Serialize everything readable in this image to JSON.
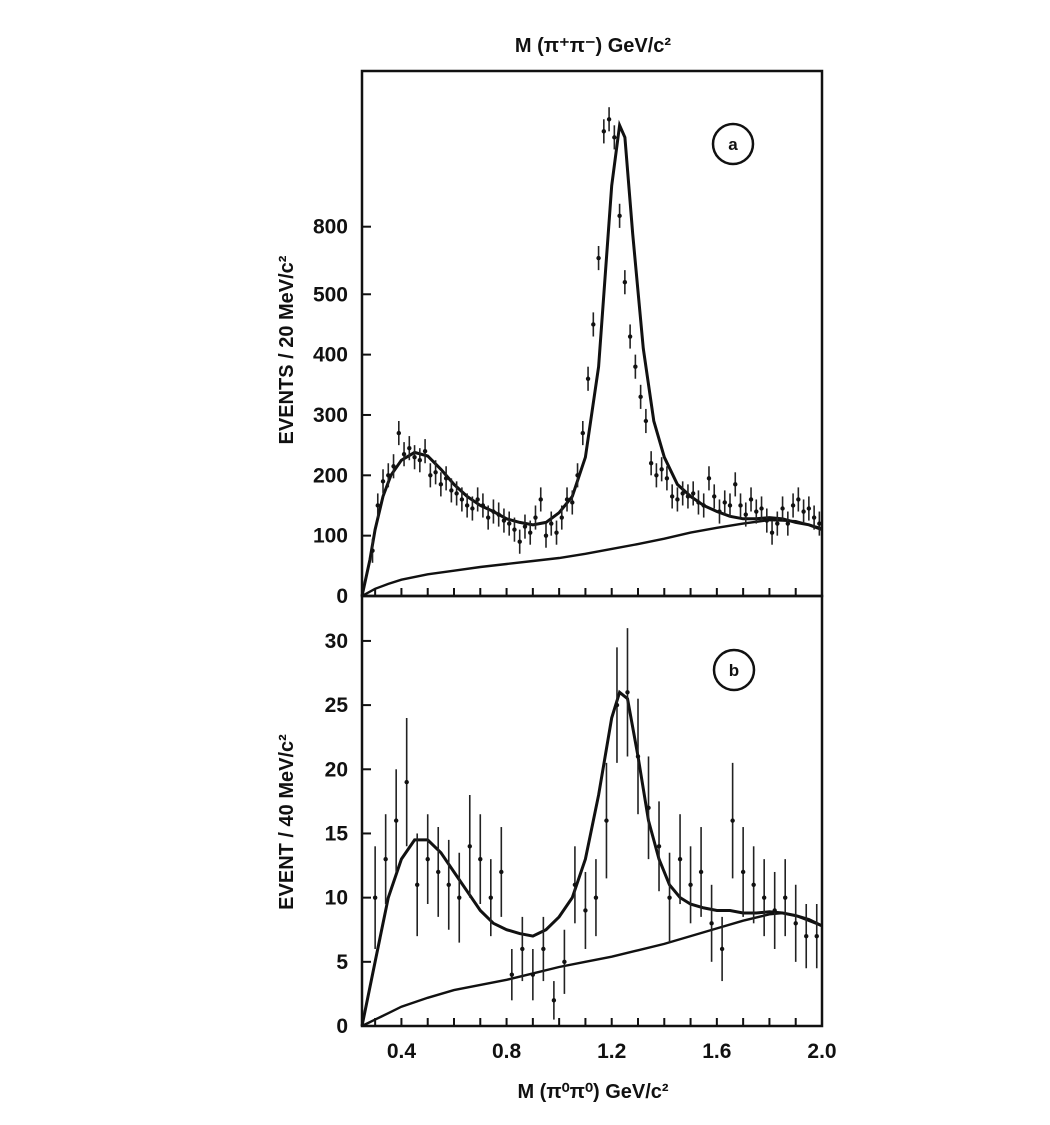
{
  "figure": {
    "top_axis_label": "M (π⁺π⁻) GeV/c²",
    "bottom_axis_label": "M (π⁰π⁰) GeV/c²"
  },
  "chart_data": [
    {
      "panel": "a",
      "type": "scatter",
      "ylabel": "EVENTS / 20 MeV/c²",
      "xlim": [
        0.25,
        2.0
      ],
      "ylim": [
        0,
        870
      ],
      "yticks": [
        0,
        100,
        200,
        300,
        400,
        500,
        800
      ],
      "ytick_labels": [
        "0",
        "100",
        "200",
        "300",
        "400",
        "500",
        "800"
      ],
      "yticks_note": "tick labels printed as shown in original",
      "points": {
        "x": [
          0.29,
          0.31,
          0.33,
          0.35,
          0.37,
          0.39,
          0.41,
          0.43,
          0.45,
          0.47,
          0.49,
          0.51,
          0.53,
          0.55,
          0.57,
          0.59,
          0.61,
          0.63,
          0.65,
          0.67,
          0.69,
          0.71,
          0.73,
          0.75,
          0.77,
          0.79,
          0.81,
          0.83,
          0.85,
          0.87,
          0.89,
          0.91,
          0.93,
          0.95,
          0.97,
          0.99,
          1.01,
          1.03,
          1.05,
          1.07,
          1.09,
          1.11,
          1.13,
          1.15,
          1.17,
          1.19,
          1.21,
          1.23,
          1.25,
          1.27,
          1.29,
          1.31,
          1.33,
          1.35,
          1.37,
          1.39,
          1.41,
          1.43,
          1.45,
          1.47,
          1.49,
          1.51,
          1.53,
          1.55,
          1.57,
          1.59,
          1.61,
          1.63,
          1.65,
          1.67,
          1.69,
          1.71,
          1.73,
          1.75,
          1.77,
          1.79,
          1.81,
          1.83,
          1.85,
          1.87,
          1.89,
          1.91,
          1.93,
          1.95,
          1.97,
          1.99
        ],
        "y": [
          75,
          150,
          190,
          200,
          215,
          270,
          235,
          245,
          230,
          225,
          240,
          200,
          205,
          185,
          195,
          175,
          170,
          160,
          150,
          145,
          160,
          150,
          130,
          140,
          135,
          125,
          120,
          110,
          90,
          115,
          105,
          130,
          160,
          100,
          120,
          105,
          130,
          160,
          155,
          200,
          270,
          360,
          450,
          560,
          770,
          790,
          760,
          630,
          520,
          430,
          380,
          330,
          290,
          220,
          200,
          210,
          195,
          165,
          160,
          170,
          165,
          170,
          155,
          150,
          195,
          165,
          140,
          155,
          150,
          185,
          150,
          135,
          160,
          140,
          145,
          125,
          105,
          120,
          145,
          120,
          150,
          160,
          140,
          145,
          130,
          120
        ],
        "yerr": 20
      },
      "fit_total": {
        "x": [
          0.25,
          0.28,
          0.3,
          0.33,
          0.36,
          0.4,
          0.45,
          0.5,
          0.55,
          0.6,
          0.65,
          0.7,
          0.75,
          0.8,
          0.85,
          0.9,
          0.95,
          1.0,
          1.05,
          1.1,
          1.15,
          1.2,
          1.23,
          1.25,
          1.28,
          1.32,
          1.36,
          1.4,
          1.45,
          1.5,
          1.55,
          1.6,
          1.65,
          1.7,
          1.75,
          1.8,
          1.85,
          1.9,
          1.95,
          2.0
        ],
        "y": [
          0,
          60,
          110,
          165,
          200,
          225,
          238,
          232,
          210,
          185,
          165,
          150,
          140,
          128,
          122,
          118,
          122,
          138,
          165,
          230,
          380,
          680,
          780,
          760,
          600,
          410,
          290,
          230,
          185,
          165,
          150,
          140,
          132,
          128,
          128,
          130,
          128,
          122,
          118,
          110
        ]
      },
      "fit_background": {
        "x": [
          0.25,
          0.3,
          0.35,
          0.4,
          0.5,
          0.6,
          0.7,
          0.8,
          0.9,
          1.0,
          1.1,
          1.2,
          1.3,
          1.4,
          1.5,
          1.6,
          1.7,
          1.8,
          1.85,
          1.9,
          2.0
        ],
        "y": [
          0,
          12,
          20,
          27,
          36,
          42,
          48,
          53,
          58,
          63,
          70,
          78,
          86,
          95,
          105,
          113,
          120,
          126,
          125,
          124,
          112
        ]
      }
    },
    {
      "panel": "b",
      "type": "scatter",
      "ylabel": "EVENT / 40 MeV/c²",
      "xlabel": "M (π⁰π⁰) GeV/c²",
      "xlim": [
        0.25,
        2.0
      ],
      "ylim": [
        0,
        33.5
      ],
      "xticks": [
        0.4,
        0.8,
        1.2,
        1.6,
        2.0
      ],
      "xtick_labels": [
        "0.4",
        "0.8",
        "1.2",
        "1.6",
        "2.0"
      ],
      "yticks": [
        0,
        5,
        10,
        15,
        20,
        25,
        30
      ],
      "ytick_labels": [
        "0",
        "5",
        "10",
        "15",
        "20",
        "25",
        "30"
      ],
      "points": {
        "x": [
          0.3,
          0.34,
          0.38,
          0.42,
          0.46,
          0.5,
          0.54,
          0.58,
          0.62,
          0.66,
          0.7,
          0.74,
          0.78,
          0.82,
          0.86,
          0.9,
          0.94,
          0.98,
          1.02,
          1.06,
          1.1,
          1.14,
          1.18,
          1.22,
          1.26,
          1.3,
          1.34,
          1.38,
          1.42,
          1.46,
          1.5,
          1.54,
          1.58,
          1.62,
          1.66,
          1.7,
          1.74,
          1.78,
          1.82,
          1.86,
          1.9,
          1.94,
          1.98
        ],
        "y": [
          10,
          13,
          16,
          19,
          11,
          13,
          12,
          11,
          10,
          14,
          13,
          10,
          12,
          4,
          6,
          4,
          6,
          2,
          5,
          11,
          9,
          10,
          16,
          25,
          26,
          21,
          17,
          14,
          10,
          13,
          11,
          12,
          8,
          6,
          16,
          12,
          11,
          10,
          9,
          10,
          8,
          7,
          7
        ],
        "yerr": [
          4,
          3.5,
          4,
          5,
          4,
          3.5,
          3.5,
          3.5,
          3.5,
          4,
          3.5,
          3,
          3.5,
          2,
          2.5,
          2,
          2.5,
          1.5,
          2.5,
          3,
          3,
          3,
          4.5,
          4.5,
          5,
          4.5,
          4,
          3.5,
          3.5,
          3.5,
          3,
          3.5,
          3,
          2.5,
          4.5,
          3.5,
          3,
          3,
          3,
          3,
          3,
          2.5,
          2.5
        ]
      },
      "fit_total": {
        "x": [
          0.25,
          0.3,
          0.35,
          0.4,
          0.45,
          0.5,
          0.55,
          0.6,
          0.65,
          0.7,
          0.75,
          0.8,
          0.85,
          0.9,
          0.95,
          1.0,
          1.05,
          1.1,
          1.15,
          1.2,
          1.23,
          1.26,
          1.3,
          1.34,
          1.38,
          1.42,
          1.46,
          1.5,
          1.55,
          1.6,
          1.65,
          1.7,
          1.75,
          1.8,
          1.85,
          1.9,
          1.95,
          2.0
        ],
        "y": [
          0,
          5,
          10,
          13,
          14.5,
          14.5,
          13.5,
          12,
          10.5,
          9,
          8,
          7.5,
          7.2,
          7,
          7.5,
          8.5,
          10,
          13,
          18,
          24,
          26,
          25.5,
          21,
          16,
          13,
          11,
          10,
          9.5,
          9.2,
          9,
          9,
          8.8,
          8.8,
          8.9,
          8.8,
          8.6,
          8.3,
          7.8
        ]
      },
      "fit_background": {
        "x": [
          0.25,
          0.3,
          0.35,
          0.4,
          0.5,
          0.6,
          0.7,
          0.8,
          0.9,
          1.0,
          1.1,
          1.2,
          1.3,
          1.4,
          1.5,
          1.6,
          1.7,
          1.8,
          1.85,
          1.9,
          2.0
        ],
        "y": [
          0,
          0.5,
          1,
          1.5,
          2.2,
          2.8,
          3.2,
          3.6,
          4.1,
          4.6,
          5,
          5.4,
          5.9,
          6.4,
          7,
          7.6,
          8.2,
          8.7,
          8.8,
          8.6,
          7.8
        ]
      }
    }
  ]
}
